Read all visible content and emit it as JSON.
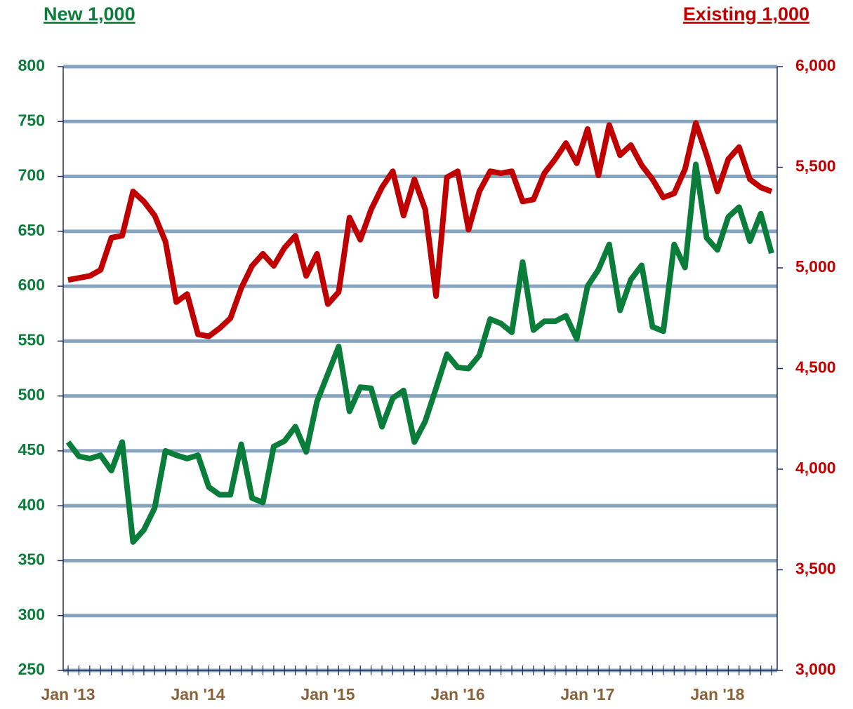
{
  "chart_data": {
    "type": "line",
    "title_left": "New 1,000",
    "title_right": "Existing 1,000",
    "categories": [
      "Jan '13",
      null,
      null,
      null,
      null,
      null,
      null,
      null,
      null,
      null,
      null,
      null,
      "Jan '14",
      null,
      null,
      null,
      null,
      null,
      null,
      null,
      null,
      null,
      null,
      null,
      "Jan '15",
      null,
      null,
      null,
      null,
      null,
      null,
      null,
      null,
      null,
      null,
      null,
      "Jan '16",
      null,
      null,
      null,
      null,
      null,
      null,
      null,
      null,
      null,
      null,
      null,
      "Jan '17",
      null,
      null,
      null,
      null,
      null,
      null,
      null,
      null,
      null,
      null,
      null,
      "Jan '18",
      null,
      null,
      null,
      null,
      null
    ],
    "series": [
      {
        "name": "New 1,000",
        "color": "#0a7d3a",
        "axis": "y",
        "values": [
          458,
          445,
          443,
          446,
          432,
          458,
          367,
          378,
          398,
          450,
          446,
          443,
          446,
          417,
          410,
          410,
          456,
          407,
          403,
          454,
          459,
          472,
          449,
          495,
          520,
          545,
          486,
          508,
          507,
          472,
          498,
          505,
          458,
          477,
          507,
          538,
          526,
          525,
          537,
          570,
          566,
          558,
          622,
          560,
          568,
          568,
          573,
          552,
          600,
          615,
          638,
          578,
          606,
          619,
          563,
          559,
          638,
          617,
          711,
          644,
          633,
          663,
          672,
          641,
          666,
          630
        ]
      },
      {
        "name": "Existing 1,000",
        "color": "#c00000",
        "axis": "y2",
        "values": [
          4940,
          4950,
          4960,
          4990,
          5150,
          5160,
          5380,
          5330,
          5260,
          5130,
          4830,
          4870,
          4670,
          4660,
          4700,
          4750,
          4900,
          5010,
          5070,
          5010,
          5100,
          5160,
          4960,
          5070,
          4820,
          4880,
          5250,
          5140,
          5290,
          5400,
          5480,
          5260,
          5440,
          5290,
          4860,
          5450,
          5480,
          5190,
          5380,
          5480,
          5470,
          5480,
          5330,
          5340,
          5470,
          5540,
          5620,
          5520,
          5690,
          5460,
          5710,
          5560,
          5610,
          5510,
          5440,
          5350,
          5370,
          5490,
          5720,
          5560,
          5380,
          5540,
          5600,
          5440,
          5400,
          5380
        ]
      }
    ],
    "ylim": [
      250,
      800
    ],
    "yticks": [
      250,
      300,
      350,
      400,
      450,
      500,
      550,
      600,
      650,
      700,
      750,
      800
    ],
    "y2lim": [
      3000,
      6000
    ],
    "y2ticks": [
      {
        "value": 3000,
        "label": "3,000"
      },
      {
        "value": 3500,
        "label": "3,500"
      },
      {
        "value": 4000,
        "label": "4,000"
      },
      {
        "value": 4500,
        "label": "4,500"
      },
      {
        "value": 5000,
        "label": "5,000"
      },
      {
        "value": 5500,
        "label": "5,500"
      },
      {
        "value": 6000,
        "label": "6,000"
      }
    ],
    "grid": true
  }
}
